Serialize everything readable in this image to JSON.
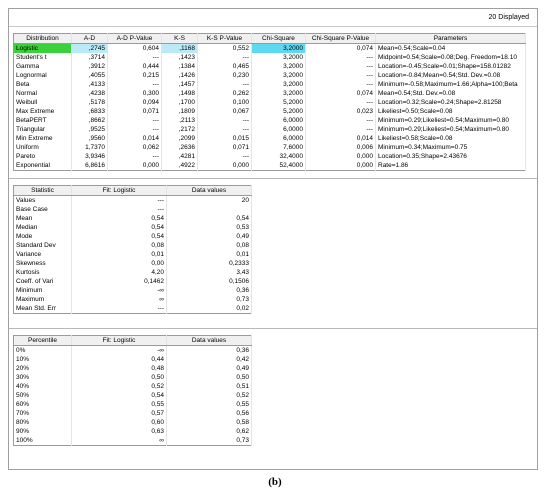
{
  "status": "20 Displayed",
  "fit_table": {
    "headers": [
      "Distribution",
      "A-D",
      "A-D P-Value",
      "K-S",
      "K-S P-Value",
      "Chi-Square",
      "Chi-Square P-Value",
      "Parameters"
    ],
    "rows": [
      [
        "Logistic",
        ",2745",
        "0,604",
        ",1168",
        "0,552",
        "3,2000",
        "0,074",
        "Mean=0.54;Scale=0.04"
      ],
      [
        "Student's t",
        ",3714",
        "---",
        ",1423",
        "---",
        "3,2000",
        "---",
        "Midpoint=0.54;Scale=0.08;Deg. Freedom=18.10"
      ],
      [
        "Gamma",
        ",3912",
        "0,444",
        ",1384",
        "0,465",
        "3,2000",
        "---",
        "Location=-0.45;Scale=0.01;Shape=158.01282"
      ],
      [
        "Lognormal",
        ",4055",
        "0,215",
        ",1426",
        "0,230",
        "3,2000",
        "---",
        "Location=-0.84;Mean=0.54;Std. Dev.=0.08"
      ],
      [
        "Beta",
        ",4133",
        "---",
        ",1457",
        "---",
        "3,2000",
        "---",
        "Minimum=-0.58;Maximum=1.66;Alpha=100;Beta"
      ],
      [
        "Normal",
        ",4238",
        "0,300",
        ",1498",
        "0,262",
        "3,2000",
        "0,074",
        "Mean=0.54;Std. Dev.=0.08"
      ],
      [
        "Weibull",
        ",5178",
        "0,094",
        ",1700",
        "0,100",
        "5,2000",
        "---",
        "Location=0.32;Scale=0.24;Shape=2.81258"
      ],
      [
        "Max Extreme",
        ",6833",
        "0,071",
        ",1809",
        "0,067",
        "5,2000",
        "0,023",
        "Likeliest=0.50;Scale=0.08"
      ],
      [
        "BetaPERT",
        ",8662",
        "---",
        ",2113",
        "---",
        "6,0000",
        "---",
        "Minimum=0.29;Likeliest=0.54;Maximum=0.80"
      ],
      [
        "Triangular",
        ",9525",
        "---",
        ",2172",
        "---",
        "6,0000",
        "---",
        "Minimum=0.29;Likeliest=0.54;Maximum=0.80"
      ],
      [
        "Min Extreme",
        ",9560",
        "0,014",
        ",2099",
        "0,015",
        "6,0000",
        "0,014",
        "Likeliest=0.58;Scale=0.08"
      ],
      [
        "Uniform",
        "1,7370",
        "0,062",
        ",2636",
        "0,071",
        "7,6000",
        "0,006",
        "Minimum=0.34;Maximum=0.75"
      ],
      [
        "Pareto",
        "3,9346",
        "---",
        ",4281",
        "---",
        "32,4000",
        "0,000",
        "Location=0.35;Shape=2.43676"
      ],
      [
        "Exponential",
        "6,8616",
        "0,000",
        ",4922",
        "0,000",
        "52,4000",
        "0,000",
        "Rate=1.86"
      ]
    ]
  },
  "stats_table": {
    "headers": [
      "Statistic",
      "Fit: Logistic",
      "Data values"
    ],
    "rows": [
      [
        "Values",
        "---",
        "20"
      ],
      [
        "Base Case",
        "---"
      ],
      [
        "Mean",
        "0,54",
        "0,54"
      ],
      [
        "Median",
        "0,54",
        "0,53"
      ],
      [
        "Mode",
        "0,54",
        "0,49"
      ],
      [
        "Standard Dev",
        "0,08",
        "0,08"
      ],
      [
        "Variance",
        "0,01",
        "0,01"
      ],
      [
        "Skewness",
        "0,00",
        "0,2333"
      ],
      [
        "Kurtosis",
        "4,20",
        "3,43"
      ],
      [
        "Coeff. of Vari",
        "0,1462",
        "0,1506"
      ],
      [
        "Minimum",
        "-∞",
        "0,36"
      ],
      [
        "Maximum",
        "∞",
        "0,73"
      ],
      [
        "Mean Std. Err",
        "---",
        "0,02"
      ]
    ]
  },
  "percentile_table": {
    "headers": [
      "Percentile",
      "Fit: Logistic",
      "Data values"
    ],
    "rows": [
      [
        "0%",
        "-∞",
        "0,36"
      ],
      [
        "10%",
        "0,44",
        "0,42"
      ],
      [
        "20%",
        "0,48",
        "0,49"
      ],
      [
        "30%",
        "0,50",
        "0,50"
      ],
      [
        "40%",
        "0,52",
        "0,51"
      ],
      [
        "50%",
        "0,54",
        "0,52"
      ],
      [
        "60%",
        "0,55",
        "0,55"
      ],
      [
        "70%",
        "0,57",
        "0,56"
      ],
      [
        "80%",
        "0,60",
        "0,58"
      ],
      [
        "90%",
        "0,63",
        "0,62"
      ],
      [
        "100%",
        "∞",
        "0,73"
      ]
    ]
  },
  "caption": "(b)"
}
